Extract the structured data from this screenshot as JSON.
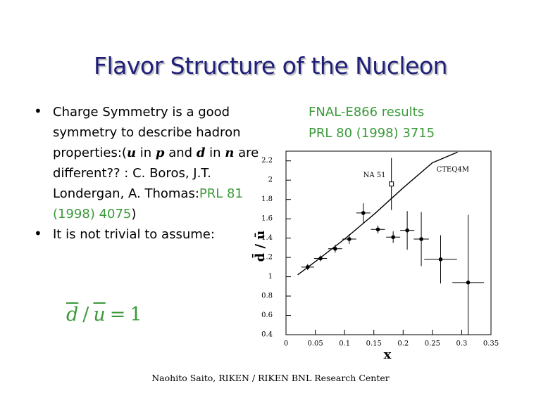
{
  "title": "Flavor Structure of the Nucleon",
  "bullets": [
    {
      "segments": [
        {
          "text": "Charge Symmetry is a good symmetry to describe hadron properties:("
        },
        {
          "text": "u",
          "style": "math"
        },
        {
          "text": " in "
        },
        {
          "text": "p",
          "style": "math"
        },
        {
          "text": " and "
        },
        {
          "text": "d",
          "style": "math"
        },
        {
          "text": " in "
        },
        {
          "text": "n",
          "style": "math"
        },
        {
          "text": " are different?? : C. Boros, J.T. Londergan, A. Thomas:"
        },
        {
          "text": "PRL 81 (1998) 4075",
          "color": "#3a9a3a"
        },
        {
          "text": ")"
        }
      ]
    },
    {
      "segments": [
        {
          "text": "It is not trivial to assume:"
        }
      ]
    }
  ],
  "equation": {
    "parts": [
      {
        "text": "d",
        "overline": true
      },
      {
        "text": "/"
      },
      {
        "text": "u",
        "overline": true
      },
      {
        "text": "="
      },
      {
        "text": "1"
      }
    ]
  },
  "results": [
    "FNAL-E866 results",
    "PRL 80 (1998) 3715"
  ],
  "footer": "Naohito Saito, RIKEN / RIKEN BNL Research Center",
  "chart_data": {
    "type": "scatter",
    "xlabel": "x",
    "ylabel": "d̄ / ū",
    "xlim": [
      0,
      0.35
    ],
    "ylim": [
      0.4,
      2.3
    ],
    "xticks": [
      0,
      0.05,
      0.1,
      0.15,
      0.2,
      0.25,
      0.3,
      0.35
    ],
    "yticks": [
      0.4,
      0.6,
      0.8,
      1,
      1.2,
      1.4,
      1.6,
      1.8,
      2,
      2.2
    ],
    "series": [
      {
        "marker": "filled-circle",
        "color": "#000000",
        "x": [
          0.037,
          0.059,
          0.084,
          0.108,
          0.132,
          0.157,
          0.183,
          0.207,
          0.231,
          0.264,
          0.311
        ],
        "values": [
          1.1,
          1.19,
          1.29,
          1.39,
          1.66,
          1.49,
          1.41,
          1.48,
          1.39,
          1.18,
          0.94
        ],
        "xerr": [
          0.011,
          0.011,
          0.012,
          0.012,
          0.012,
          0.012,
          0.012,
          0.012,
          0.013,
          0.028,
          0.027
        ],
        "yerr": [
          0.03,
          0.03,
          0.04,
          0.05,
          0.1,
          0.04,
          0.06,
          0.2,
          0.28,
          0.25,
          0.7
        ]
      },
      {
        "name": "NA 51",
        "marker": "open-square",
        "color": "#000000",
        "x": [
          0.18
        ],
        "values": [
          1.96
        ],
        "xerr": [
          0
        ],
        "yerr": [
          0.27
        ]
      },
      {
        "name": "CTEQ4M",
        "marker": "line",
        "color": "#000000",
        "x": [
          0.02,
          0.053,
          0.1,
          0.151,
          0.2,
          0.25,
          0.293
        ],
        "values": [
          1.02,
          1.17,
          1.39,
          1.65,
          1.92,
          2.18,
          2.29
        ]
      }
    ]
  }
}
